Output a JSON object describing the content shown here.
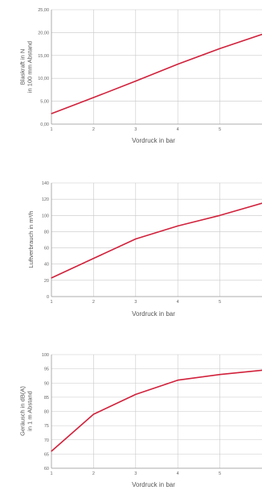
{
  "chart_data": [
    {
      "type": "line",
      "xlabel": "Vordruck in bar",
      "ylabel_lines": [
        "Blaskraft in N",
        "in 100 mm Abstand"
      ],
      "x_ticks": [
        "1",
        "2",
        "3",
        "4",
        "5"
      ],
      "y_ticks": [
        "0,00",
        "5,00",
        "10,00",
        "15,00",
        "20,00",
        "25,00"
      ],
      "xlim": [
        1,
        6
      ],
      "ylim": [
        0,
        25
      ],
      "grid": true,
      "color": "#d1213b",
      "series": [
        {
          "x": [
            1,
            2,
            3,
            4,
            5,
            6
          ],
          "y": [
            2.3,
            5.8,
            9.4,
            13.1,
            16.5,
            19.6
          ]
        }
      ]
    },
    {
      "type": "line",
      "xlabel": "Vordruck in bar",
      "ylabel_lines": [
        "Luftverbrauch in m³/h"
      ],
      "x_ticks": [
        "1",
        "2",
        "3",
        "4",
        "5"
      ],
      "y_ticks": [
        "0",
        "20",
        "40",
        "60",
        "80",
        "100",
        "120",
        "140"
      ],
      "xlim": [
        1,
        6
      ],
      "ylim": [
        0,
        140
      ],
      "grid": true,
      "color": "#d1213b",
      "series": [
        {
          "x": [
            1,
            2,
            3,
            4,
            5,
            6
          ],
          "y": [
            23,
            47,
            71,
            87,
            100,
            115
          ]
        }
      ]
    },
    {
      "type": "line",
      "xlabel": "Vordruck in bar",
      "ylabel_lines": [
        "Geräusch in dB(A)",
        "in 1 m Abstand"
      ],
      "x_ticks": [
        "1",
        "2",
        "3",
        "4",
        "5"
      ],
      "y_ticks": [
        "60",
        "65",
        "70",
        "75",
        "80",
        "85",
        "90",
        "95",
        "100"
      ],
      "xlim": [
        1,
        6
      ],
      "ylim": [
        60,
        100
      ],
      "grid": true,
      "color": "#d1213b",
      "series": [
        {
          "x": [
            1,
            2,
            3,
            4,
            5,
            6
          ],
          "y": [
            66,
            79,
            86,
            91,
            93,
            94.5
          ]
        }
      ]
    }
  ]
}
